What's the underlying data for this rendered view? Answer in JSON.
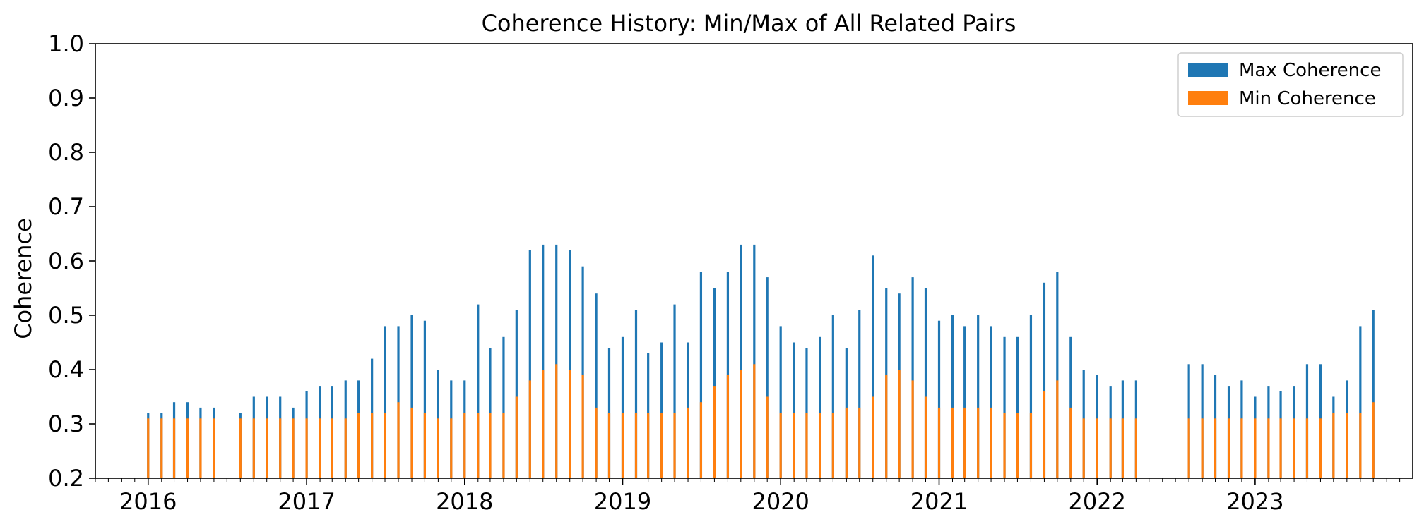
{
  "chart_data": {
    "type": "bar",
    "title": "Coherence History: Min/Max of All Related Pairs",
    "xlabel": "",
    "ylabel": "Coherence",
    "x_unit": "date",
    "xlim": [
      "2015-09-01",
      "2023-12-31"
    ],
    "ylim": [
      0.2,
      1.0
    ],
    "yticks": [
      0.2,
      0.3,
      0.4,
      0.5,
      0.6,
      0.7,
      0.8,
      0.9,
      1.0
    ],
    "xticks": [
      "2016",
      "2017",
      "2018",
      "2019",
      "2020",
      "2021",
      "2022",
      "2023"
    ],
    "grid": false,
    "legend_position": "top-right",
    "series": [
      {
        "name": "Max Coherence",
        "color": "#1f77b4"
      },
      {
        "name": "Min Coherence",
        "color": "#ff7f0e"
      }
    ],
    "x": [
      "2016-01-01",
      "2016-02-01",
      "2016-03-01",
      "2016-04-01",
      "2016-05-01",
      "2016-06-01",
      "2016-08-01",
      "2016-09-01",
      "2016-10-01",
      "2016-11-01",
      "2016-12-01",
      "2017-01-01",
      "2017-02-01",
      "2017-03-01",
      "2017-04-01",
      "2017-05-01",
      "2017-06-01",
      "2017-07-01",
      "2017-08-01",
      "2017-09-01",
      "2017-10-01",
      "2017-11-01",
      "2017-12-01",
      "2018-01-01",
      "2018-02-01",
      "2018-03-01",
      "2018-04-01",
      "2018-05-01",
      "2018-06-01",
      "2018-07-01",
      "2018-08-01",
      "2018-09-01",
      "2018-10-01",
      "2018-11-01",
      "2018-12-01",
      "2019-01-01",
      "2019-02-01",
      "2019-03-01",
      "2019-04-01",
      "2019-05-01",
      "2019-06-01",
      "2019-07-01",
      "2019-08-01",
      "2019-09-01",
      "2019-10-01",
      "2019-11-01",
      "2019-12-01",
      "2020-01-01",
      "2020-02-01",
      "2020-03-01",
      "2020-04-01",
      "2020-05-01",
      "2020-06-01",
      "2020-07-01",
      "2020-08-01",
      "2020-09-01",
      "2020-10-01",
      "2020-11-01",
      "2020-12-01",
      "2021-01-01",
      "2021-02-01",
      "2021-03-01",
      "2021-04-01",
      "2021-05-01",
      "2021-06-01",
      "2021-07-01",
      "2021-08-01",
      "2021-09-01",
      "2021-10-01",
      "2021-11-01",
      "2021-12-01",
      "2022-01-01",
      "2022-02-01",
      "2022-03-01",
      "2022-04-01",
      "2022-08-01",
      "2022-09-01",
      "2022-10-01",
      "2022-11-01",
      "2022-12-01",
      "2023-01-01",
      "2023-02-01",
      "2023-03-01",
      "2023-04-01",
      "2023-05-01",
      "2023-06-01",
      "2023-07-01",
      "2023-08-01",
      "2023-09-01",
      "2023-10-01"
    ],
    "max_values": [
      0.32,
      0.32,
      0.34,
      0.34,
      0.33,
      0.33,
      0.32,
      0.35,
      0.35,
      0.35,
      0.33,
      0.36,
      0.37,
      0.37,
      0.38,
      0.38,
      0.42,
      0.48,
      0.48,
      0.5,
      0.49,
      0.4,
      0.38,
      0.38,
      0.52,
      0.44,
      0.46,
      0.51,
      0.62,
      0.63,
      0.63,
      0.62,
      0.59,
      0.54,
      0.44,
      0.46,
      0.51,
      0.43,
      0.45,
      0.52,
      0.45,
      0.58,
      0.55,
      0.58,
      0.63,
      0.63,
      0.57,
      0.48,
      0.45,
      0.44,
      0.46,
      0.5,
      0.44,
      0.51,
      0.61,
      0.55,
      0.54,
      0.57,
      0.55,
      0.49,
      0.5,
      0.48,
      0.5,
      0.48,
      0.46,
      0.46,
      0.5,
      0.56,
      0.58,
      0.46,
      0.4,
      0.39,
      0.37,
      0.38,
      0.38,
      0.41,
      0.41,
      0.39,
      0.37,
      0.38,
      0.35,
      0.37,
      0.36,
      0.37,
      0.41,
      0.41,
      0.35,
      0.38,
      0.48,
      0.51
    ],
    "min_values": [
      0.31,
      0.31,
      0.31,
      0.31,
      0.31,
      0.31,
      0.31,
      0.31,
      0.31,
      0.31,
      0.31,
      0.31,
      0.31,
      0.31,
      0.31,
      0.32,
      0.32,
      0.32,
      0.34,
      0.33,
      0.32,
      0.31,
      0.31,
      0.32,
      0.32,
      0.32,
      0.32,
      0.35,
      0.38,
      0.4,
      0.41,
      0.4,
      0.39,
      0.33,
      0.32,
      0.32,
      0.32,
      0.32,
      0.32,
      0.32,
      0.33,
      0.34,
      0.37,
      0.39,
      0.4,
      0.41,
      0.35,
      0.32,
      0.32,
      0.32,
      0.32,
      0.32,
      0.33,
      0.33,
      0.35,
      0.39,
      0.4,
      0.38,
      0.35,
      0.33,
      0.33,
      0.33,
      0.33,
      0.33,
      0.32,
      0.32,
      0.32,
      0.36,
      0.38,
      0.33,
      0.31,
      0.31,
      0.31,
      0.31,
      0.31,
      0.31,
      0.31,
      0.31,
      0.31,
      0.31,
      0.31,
      0.31,
      0.31,
      0.31,
      0.31,
      0.31,
      0.32,
      0.32,
      0.32,
      0.34
    ]
  }
}
